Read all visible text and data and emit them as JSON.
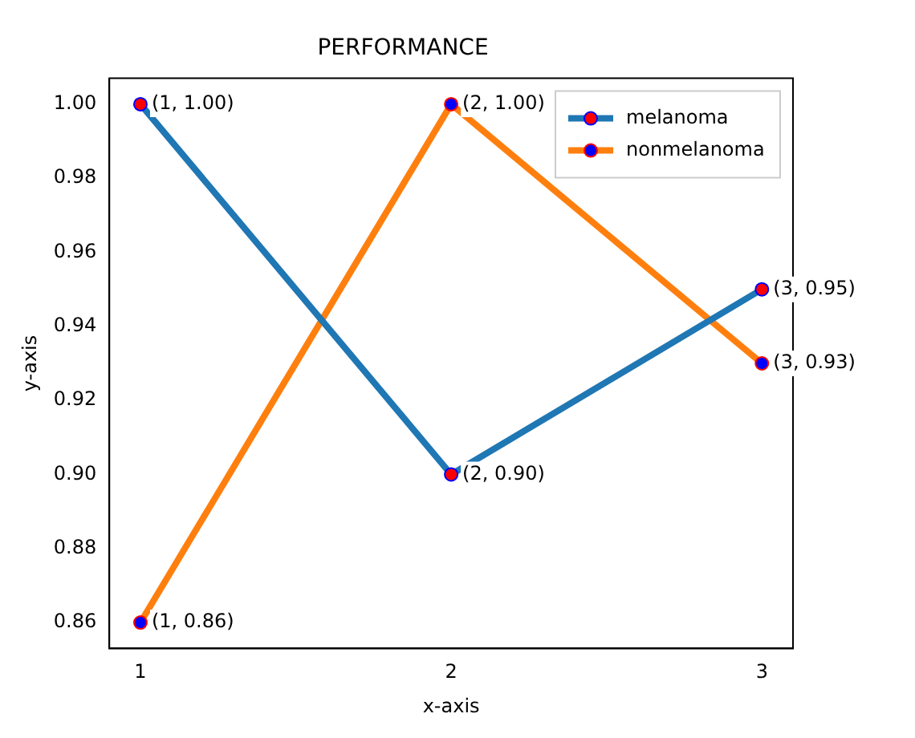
{
  "chart_data": {
    "type": "line",
    "title": "PERFORMANCE",
    "xlabel": "x-axis",
    "ylabel": "y-axis",
    "x": [
      1,
      2,
      3
    ],
    "series": [
      {
        "name": "melanoma",
        "color": "#1f77b4",
        "values": [
          1.0,
          0.9,
          0.95
        ]
      },
      {
        "name": "nonmelanoma",
        "color": "#ff7f0e",
        "values": [
          0.86,
          1.0,
          0.93
        ]
      }
    ],
    "xlim": [
      0.9,
      3.1
    ],
    "xticks": [
      1,
      2,
      3
    ],
    "ylim": [
      0.853,
      1.007
    ],
    "yticks": [
      {
        "value": 0.86,
        "label": "0.86"
      },
      {
        "value": 0.88,
        "label": "0.88"
      },
      {
        "value": 0.9,
        "label": "0.90"
      },
      {
        "value": 0.92,
        "label": "0.92"
      },
      {
        "value": 0.94,
        "label": "0.94"
      },
      {
        "value": 0.96,
        "label": "0.96"
      },
      {
        "value": 0.98,
        "label": "0.98"
      },
      {
        "value": 1.0,
        "label": "1.00"
      }
    ],
    "grid": false,
    "legend": "top right",
    "marker": "circle",
    "line_style": "solid",
    "annotations": [
      {
        "text": "(1, 1.00)",
        "x": 1,
        "y": 1.0
      },
      {
        "text": "(2, 0.90)",
        "x": 2,
        "y": 0.9
      },
      {
        "text": "(3, 0.95)",
        "x": 3,
        "y": 0.95
      },
      {
        "text": "(1, 0.86)",
        "x": 1,
        "y": 0.86
      },
      {
        "text": "(2, 1.00)",
        "x": 2,
        "y": 1.0
      },
      {
        "text": "(3, 0.93)",
        "x": 3,
        "y": 0.93
      }
    ]
  }
}
